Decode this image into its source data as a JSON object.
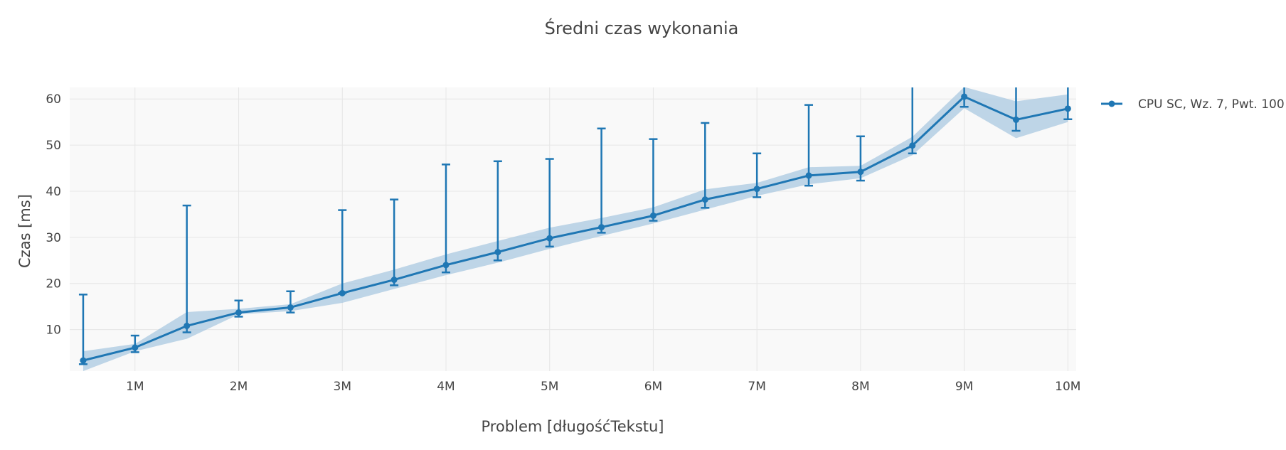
{
  "chart_data": {
    "type": "line",
    "title": "Średni czas wykonania",
    "xlabel": "Problem [długośćTekstu]",
    "ylabel": "Czas [ms]",
    "xlim": [
      0.37,
      10.08
    ],
    "ylim": [
      1,
      62.5
    ],
    "grid": true,
    "legend_position": "top-right",
    "x_ticks": [
      1,
      2,
      3,
      4,
      5,
      6,
      7,
      8,
      9,
      10
    ],
    "x_tick_labels": [
      "1M",
      "2M",
      "3M",
      "4M",
      "5M",
      "6M",
      "7M",
      "8M",
      "9M",
      "10M"
    ],
    "y_ticks": [
      10,
      20,
      30,
      40,
      50,
      60
    ],
    "y_tick_labels": [
      "10",
      "20",
      "30",
      "40",
      "50",
      "60"
    ],
    "x_unit": "M",
    "series": [
      {
        "name": "CPU SC, Wz. 7, Pwt. 100",
        "color": "#1f77b4",
        "band_color": "#a9c8e0",
        "x": [
          0.5,
          1,
          1.5,
          2,
          2.5,
          3,
          3.5,
          4,
          4.5,
          5,
          5.5,
          6,
          6.5,
          7,
          7.5,
          8,
          8.5,
          9,
          9.5,
          10
        ],
        "y": [
          3.3,
          6.1,
          10.8,
          13.7,
          14.8,
          17.9,
          20.8,
          24.0,
          26.8,
          29.8,
          32.2,
          34.7,
          38.2,
          40.5,
          43.4,
          44.2,
          49.9,
          60.5,
          55.5,
          57.9
        ],
        "band_lower": [
          1.0,
          5.3,
          8.0,
          13.3,
          14.0,
          15.8,
          18.8,
          21.8,
          24.5,
          27.5,
          30.3,
          33.0,
          36.0,
          39.0,
          41.5,
          42.8,
          47.8,
          58.0,
          51.5,
          55.0
        ],
        "band_upper": [
          5.3,
          6.9,
          13.8,
          14.5,
          15.5,
          20.0,
          23.0,
          26.3,
          29.2,
          32.1,
          34.2,
          36.5,
          40.4,
          41.8,
          45.2,
          45.5,
          51.8,
          62.6,
          59.5,
          61.0
        ],
        "error_low": [
          2.5,
          5.1,
          9.4,
          12.8,
          13.7,
          17.9,
          19.6,
          22.4,
          25.0,
          28.0,
          31.0,
          33.6,
          36.4,
          38.7,
          41.2,
          42.3,
          48.2,
          58.3,
          53.1,
          55.6
        ],
        "error_high": [
          17.6,
          8.7,
          36.9,
          16.3,
          18.3,
          35.9,
          38.2,
          45.8,
          46.5,
          47.0,
          53.6,
          51.3,
          54.8,
          48.2,
          58.7,
          51.9,
          65.0,
          65.0,
          65.0,
          65.0
        ]
      }
    ]
  }
}
